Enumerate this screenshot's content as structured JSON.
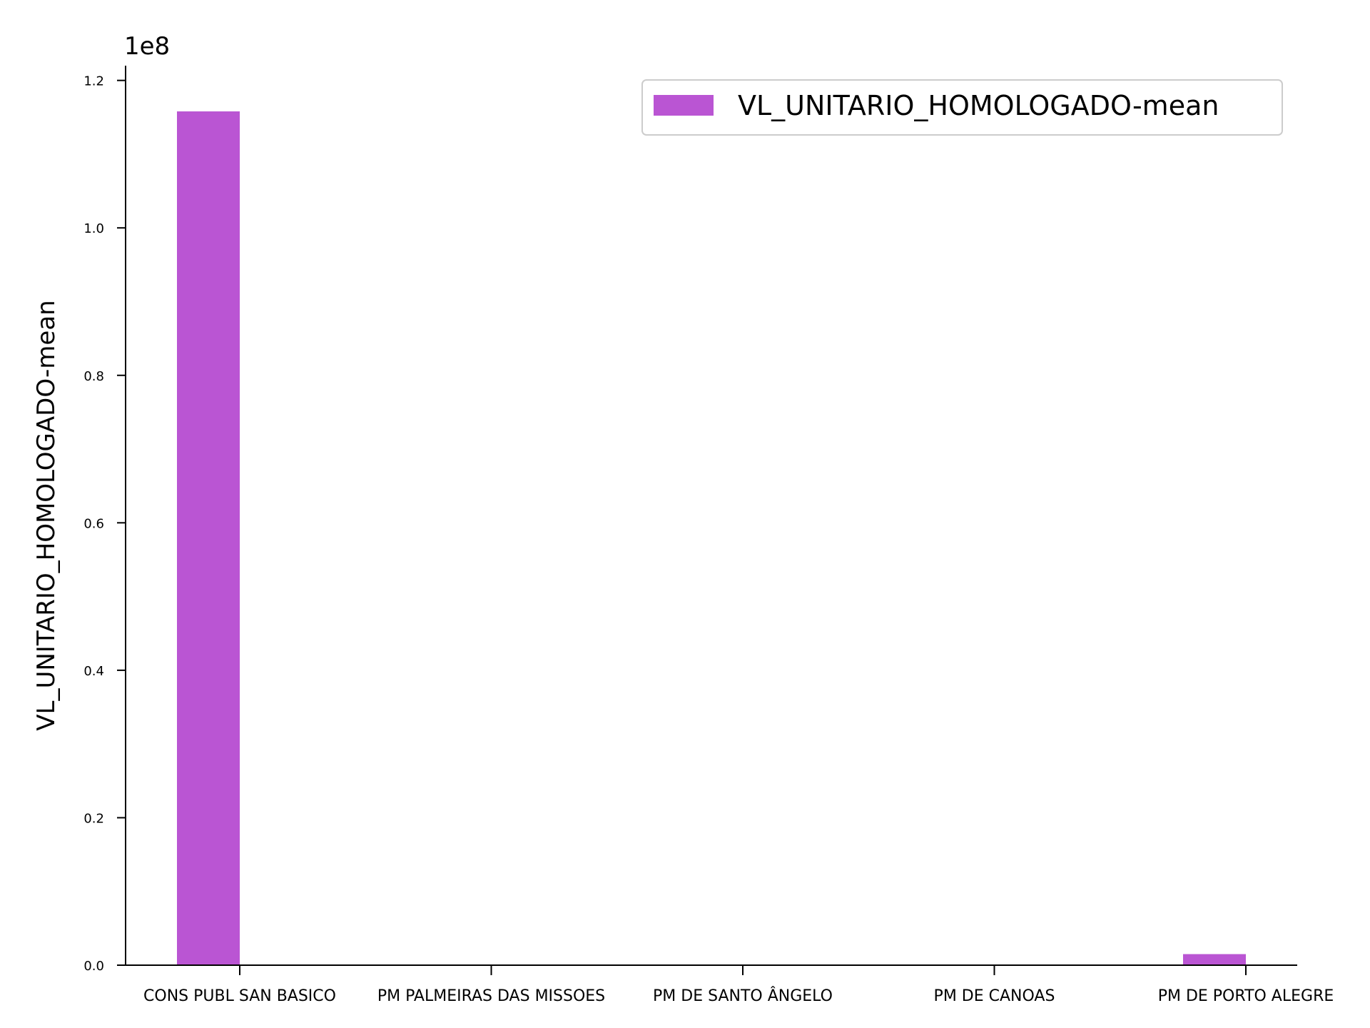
{
  "chart_data": {
    "type": "bar",
    "categories": [
      "CONS PUBL SAN BASICO",
      "PM PALMEIRAS DAS MISSOES",
      "PM DE SANTO ÂNGELO",
      "PM DE CANOAS",
      "PM DE PORTO ALEGRE"
    ],
    "series": [
      {
        "name": "VL_UNITARIO_HOMOLOGADO-mean",
        "values": [
          115800000,
          0,
          0,
          0,
          1500000
        ],
        "color": "#ba55d3"
      }
    ],
    "xlabel": "",
    "ylabel": "VL_UNITARIO_HOMOLOGADO-mean",
    "ylim": [
      0,
      122000000
    ],
    "yticks": [
      0,
      20000000,
      40000000,
      60000000,
      80000000,
      100000000,
      120000000
    ],
    "ytick_labels": [
      "0.0",
      "0.2",
      "0.4",
      "0.6",
      "0.8",
      "1.0",
      "1.2"
    ],
    "y_offset_label": "1e8",
    "legend_position": "top-right",
    "grid": false
  }
}
